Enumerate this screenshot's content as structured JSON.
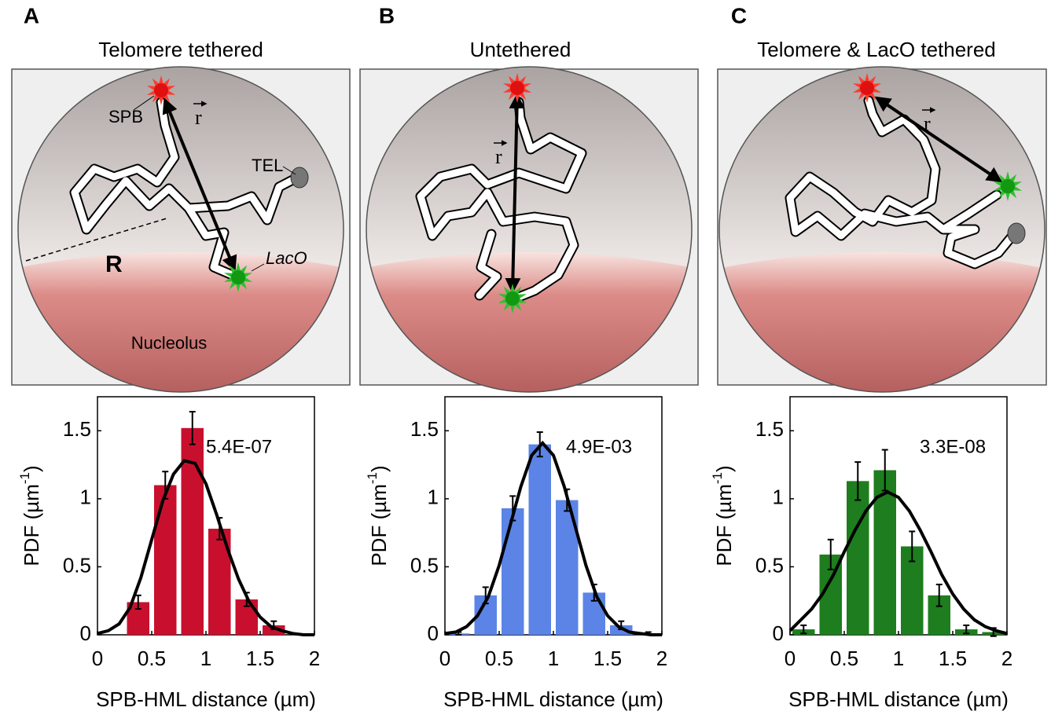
{
  "panels": [
    {
      "label": "A",
      "title": "Telomere tethered",
      "diagram": {
        "spb": "SPB",
        "r": "r",
        "tel": "TEL",
        "radius": "R",
        "laco": "LacO",
        "nucleolus": "Nucleolus"
      }
    },
    {
      "label": "B",
      "title": "Untethered",
      "diagram": {
        "r": "r"
      }
    },
    {
      "label": "C",
      "title": "Telomere & LacO tethered",
      "diagram": {
        "r": "r"
      }
    }
  ],
  "chart_data": [
    {
      "type": "histogram",
      "color": "#c8102e",
      "annotation": "5.4E-07",
      "bins": [
        0,
        0.25,
        0.5,
        0.75,
        1,
        1.25,
        1.5,
        1.75,
        2
      ],
      "values": [
        0,
        0.24,
        1.1,
        1.52,
        0.78,
        0.26,
        0.07,
        0
      ],
      "errors": [
        null,
        0.05,
        0.1,
        0.12,
        0.08,
        0.05,
        0.03,
        null
      ],
      "fit": {
        "x": [
          0,
          0.1,
          0.2,
          0.3,
          0.4,
          0.5,
          0.6,
          0.7,
          0.8,
          0.9,
          1,
          1.1,
          1.2,
          1.3,
          1.4,
          1.5,
          1.6,
          1.7,
          1.8,
          1.9,
          2
        ],
        "y": [
          0.01,
          0.03,
          0.08,
          0.2,
          0.42,
          0.7,
          0.98,
          1.18,
          1.28,
          1.26,
          1.11,
          0.88,
          0.63,
          0.41,
          0.24,
          0.13,
          0.06,
          0.03,
          0.01,
          0,
          0
        ]
      },
      "xlabel": "SPB-HML distance (µm)",
      "ylabel": [
        "PDF (µm",
        "-1",
        ")"
      ],
      "xlim": [
        0,
        2
      ],
      "ylim": [
        0,
        1.75
      ],
      "xticks": [
        0,
        0.5,
        1,
        1.5,
        2
      ],
      "yticks": [
        0,
        0.5,
        1,
        1.5
      ]
    },
    {
      "type": "histogram",
      "color": "#5b84e6",
      "annotation": "4.9E-03",
      "bins": [
        0,
        0.25,
        0.5,
        0.75,
        1,
        1.25,
        1.5,
        1.75,
        2
      ],
      "values": [
        0.01,
        0.29,
        0.93,
        1.4,
        0.99,
        0.31,
        0.07,
        0.01
      ],
      "errors": [
        0.01,
        0.06,
        0.09,
        0.09,
        0.08,
        0.06,
        0.03,
        0.01
      ],
      "fit": {
        "x": [
          0,
          0.1,
          0.2,
          0.3,
          0.4,
          0.5,
          0.6,
          0.7,
          0.8,
          0.9,
          1,
          1.1,
          1.2,
          1.3,
          1.4,
          1.5,
          1.6,
          1.7,
          1.8,
          1.9,
          2
        ],
        "y": [
          0.01,
          0.02,
          0.06,
          0.14,
          0.28,
          0.51,
          0.8,
          1.09,
          1.32,
          1.41,
          1.32,
          1.09,
          0.8,
          0.51,
          0.28,
          0.14,
          0.06,
          0.02,
          0.01,
          0,
          0
        ]
      },
      "xlabel": "SPB-HML distance (µm)",
      "ylabel": [
        "PDF (µm",
        "-1",
        ")"
      ],
      "xlim": [
        0,
        2
      ],
      "ylim": [
        0,
        1.75
      ],
      "xticks": [
        0,
        0.5,
        1,
        1.5,
        2
      ],
      "yticks": [
        0,
        0.5,
        1,
        1.5
      ]
    },
    {
      "type": "histogram",
      "color": "#1e7d1e",
      "annotation": "3.3E-08",
      "bins": [
        0,
        0.25,
        0.5,
        0.75,
        1,
        1.25,
        1.5,
        1.75,
        2
      ],
      "values": [
        0.04,
        0.59,
        1.13,
        1.21,
        0.65,
        0.29,
        0.04,
        0.02
      ],
      "errors": [
        0.03,
        0.11,
        0.14,
        0.15,
        0.11,
        0.08,
        0.03,
        0.03
      ],
      "fit": {
        "x": [
          0,
          0.1,
          0.2,
          0.3,
          0.4,
          0.5,
          0.6,
          0.7,
          0.8,
          0.9,
          1,
          1.1,
          1.2,
          1.3,
          1.4,
          1.5,
          1.6,
          1.7,
          1.8,
          1.9,
          2
        ],
        "y": [
          0.03,
          0.11,
          0.19,
          0.3,
          0.44,
          0.61,
          0.77,
          0.91,
          1.01,
          1.05,
          1.01,
          0.91,
          0.77,
          0.61,
          0.44,
          0.3,
          0.19,
          0.11,
          0.06,
          0.03,
          0.01
        ]
      },
      "xlabel": "SPB-HML distance (µm)",
      "ylabel": [
        "PDF (µm",
        "-1",
        ")"
      ],
      "xlim": [
        0,
        2
      ],
      "ylim": [
        0,
        1.75
      ],
      "xticks": [
        0,
        0.5,
        1,
        1.5,
        2
      ],
      "yticks": [
        0,
        0.5,
        1,
        1.5
      ]
    }
  ]
}
